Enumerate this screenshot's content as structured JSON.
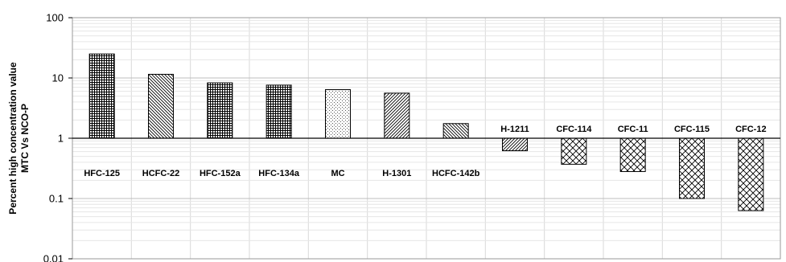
{
  "chart_data": {
    "type": "bar",
    "scale": "log",
    "baseline": 1,
    "ylim": [
      0.01,
      100
    ],
    "yticks": [
      "100",
      "10",
      "1",
      "0.1",
      "0.01"
    ],
    "ytick_values": [
      100,
      10,
      1,
      0.1,
      0.01
    ],
    "ylabel_line1": "Percent high concentration value",
    "ylabel_line2": "MTC Vs NCO-P",
    "xlabel": "",
    "grid": true,
    "categories": [
      "HFC-125",
      "HCFC-22",
      "HFC-152a",
      "HFC-134a",
      "MC",
      "H-1301",
      "HCFC-142b",
      "H-1211",
      "CFC-114",
      "CFC-11",
      "CFC-115",
      "CFC-12"
    ],
    "values": [
      25,
      11.5,
      8.3,
      7.6,
      6.4,
      5.6,
      1.75,
      0.62,
      0.37,
      0.28,
      0.1,
      0.063
    ],
    "patterns": [
      "grid-fine",
      "diag-left",
      "grid-fine",
      "grid-fine",
      "dots",
      "diag-right",
      "diag-left",
      "diag-right",
      "crosshatch",
      "crosshatch",
      "crosshatch",
      "crosshatch"
    ],
    "colors": {
      "bar_fill": "#ffffff",
      "bar_stroke": "#000000",
      "grid": "#d9d9d9",
      "axis": "#000000"
    }
  }
}
